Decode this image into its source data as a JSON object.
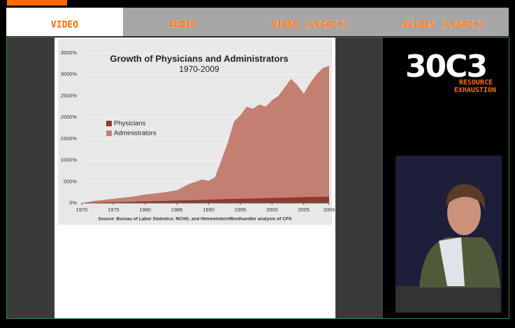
{
  "tabs": {
    "labels": [
      "VIDEO",
      "AUDIO",
      "VIDEO (LEGACY)",
      "SLIDES (LEGACY)"
    ],
    "active": 0
  },
  "logo": {
    "mark": "30C3",
    "lines": [
      "RESOURCE",
      "EXHAUSTION"
    ]
  },
  "chart_data": {
    "type": "area",
    "title": "Growth of Physicians and Administrators",
    "subtitle": "1970-2009",
    "source": "Source: Bureau of Labor Statistics; NCHS; and Himmelstein/Woolhandler analysis of CPS",
    "x": [
      1970,
      1972,
      1975,
      1978,
      1980,
      1983,
      1985,
      1987,
      1989,
      1990,
      1991,
      1992,
      1993,
      1994,
      1995,
      1996,
      1997,
      1998,
      1999,
      2000,
      2001,
      2002,
      2003,
      2004,
      2005,
      2006,
      2007,
      2008,
      2009
    ],
    "series": [
      {
        "name": "Administrators",
        "color": "#c47f73",
        "values": [
          0,
          50,
          100,
          150,
          200,
          250,
          300,
          450,
          550,
          520,
          600,
          1000,
          1400,
          1900,
          2050,
          2250,
          2200,
          2300,
          2250,
          2400,
          2500,
          2700,
          2900,
          2750,
          2550,
          2800,
          3000,
          3150,
          3200
        ]
      },
      {
        "name": "Physicians",
        "color": "#8e3b2f",
        "values": [
          0,
          8,
          20,
          30,
          40,
          50,
          60,
          65,
          75,
          80,
          85,
          90,
          95,
          98,
          100,
          105,
          108,
          110,
          115,
          120,
          123,
          127,
          130,
          135,
          140,
          143,
          146,
          148,
          150
        ]
      }
    ],
    "legend_order": [
      1,
      0
    ],
    "xlim": [
      1970,
      2009
    ],
    "xticks": [
      1970,
      1975,
      1980,
      1985,
      1990,
      1995,
      2000,
      2005,
      2009
    ],
    "ylim": [
      0,
      3500
    ],
    "yticks": [
      {
        "value": 0,
        "label": "0%"
      },
      {
        "value": 500,
        "label": "500%"
      },
      {
        "value": 1000,
        "label": "1000%"
      },
      {
        "value": 1500,
        "label": "1500%"
      },
      {
        "value": 2000,
        "label": "2000%"
      },
      {
        "value": 2500,
        "label": "2500%"
      },
      {
        "value": 3000,
        "label": "3000%"
      },
      {
        "value": 3500,
        "label": "3500%"
      }
    ]
  }
}
